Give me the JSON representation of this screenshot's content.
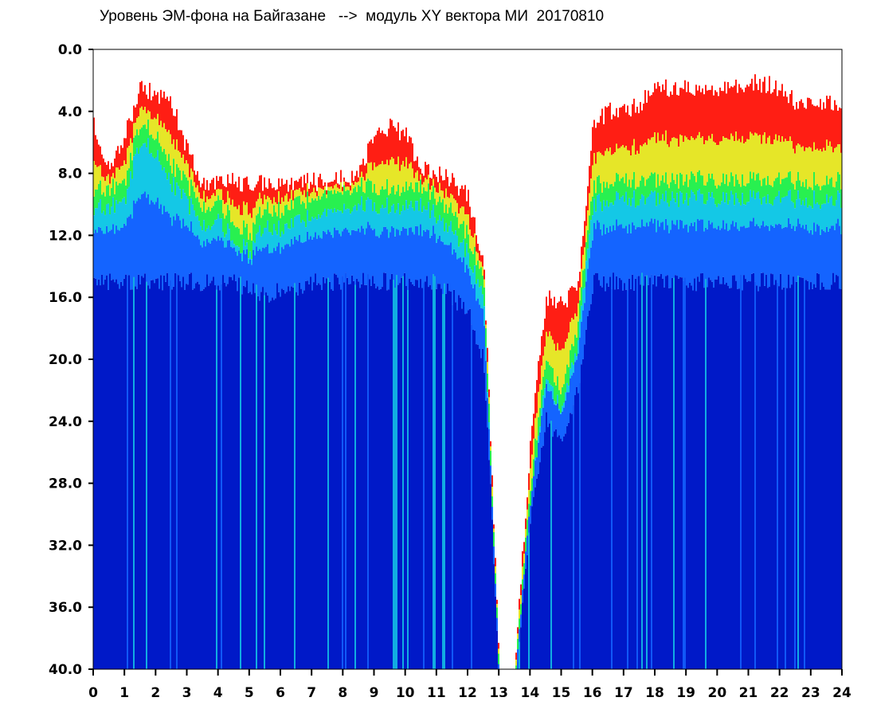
{
  "chart_data": {
    "type": "heatmap",
    "title": "Уровень ЭМ-фона на Байгазане   -->  модуль XY вектора МИ  20170810",
    "xlabel": "",
    "ylabel": "",
    "xlim": [
      0,
      24
    ],
    "ylim": [
      0,
      40
    ],
    "y_inverted": true,
    "grid": false,
    "x_ticks": [
      "0",
      "1",
      "2",
      "3",
      "4",
      "5",
      "6",
      "7",
      "8",
      "9",
      "10",
      "11",
      "12",
      "13",
      "14",
      "15",
      "16",
      "17",
      "18",
      "19",
      "20",
      "21",
      "22",
      "23",
      "24"
    ],
    "y_ticks": [
      "0.0",
      "4.0",
      "8.0",
      "12.0",
      "16.0",
      "20.0",
      "24.0",
      "28.0",
      "32.0",
      "36.0",
      "40.0"
    ],
    "colors": {
      "background_level": "#0019c8",
      "low": "#1464ff",
      "mid_low": "#14c8e6",
      "mid": "#28f050",
      "mid_high": "#e6e628",
      "high": "#ff1e14",
      "none": "#ffffff"
    },
    "hourly_profile": {
      "hours": [
        0,
        0.5,
        1,
        1.5,
        2,
        2.5,
        3,
        3.5,
        4,
        4.5,
        5,
        5.5,
        6,
        6.5,
        7,
        7.5,
        8,
        8.5,
        9,
        9.5,
        10,
        10.5,
        11,
        11.5,
        12,
        12.5,
        13,
        13.5,
        14,
        14.5,
        15,
        15.5,
        16,
        16.5,
        17,
        17.5,
        18,
        18.5,
        19,
        19.5,
        20,
        20.5,
        21,
        21.5,
        22,
        22.5,
        23,
        23.5,
        24
      ],
      "red_top": [
        5.0,
        7.5,
        5.5,
        2.6,
        2.8,
        3.4,
        6.5,
        8.8,
        8.6,
        8.5,
        8.8,
        8.6,
        8.7,
        8.6,
        8.5,
        8.7,
        8.3,
        8.2,
        5.5,
        5.0,
        5.5,
        7.8,
        8.0,
        8.5,
        9.5,
        14.0,
        40.0,
        40.0,
        25.0,
        16.0,
        16.5,
        15.5,
        5.0,
        4.0,
        4.0,
        3.5,
        2.5,
        2.5,
        2.5,
        2.5,
        2.5,
        2.5,
        2.2,
        2.2,
        2.5,
        3.5,
        3.5,
        3.5,
        3.8
      ],
      "green_top": [
        9.0,
        9.0,
        8.5,
        4.5,
        5.5,
        7.5,
        8.7,
        10.0,
        10.0,
        11.0,
        12.0,
        10.0,
        10.5,
        10.0,
        9.5,
        9.0,
        8.8,
        8.8,
        8.8,
        9.0,
        9.0,
        9.0,
        9.5,
        10.5,
        12.0,
        15.0,
        40.0,
        40.0,
        28.0,
        20.0,
        22.0,
        18.0,
        8.8,
        8.6,
        8.5,
        8.5,
        8.4,
        8.4,
        8.4,
        8.4,
        8.4,
        8.4,
        8.4,
        8.4,
        8.4,
        8.5,
        8.5,
        8.5,
        8.5
      ],
      "deep_top": [
        15.0,
        15.0,
        15.0,
        15.0,
        15.0,
        15.0,
        15.0,
        15.0,
        15.0,
        15.0,
        15.5,
        16.0,
        15.5,
        15.5,
        15.0,
        15.0,
        15.0,
        15.0,
        15.0,
        15.0,
        15.0,
        15.0,
        15.0,
        16.0,
        17.0,
        20.0,
        40.0,
        40.0,
        30.0,
        24.0,
        25.0,
        22.0,
        15.0,
        15.0,
        15.0,
        15.0,
        15.0,
        15.0,
        15.0,
        15.0,
        15.0,
        15.0,
        15.0,
        15.0,
        15.0,
        15.0,
        15.0,
        15.0,
        15.0
      ]
    }
  }
}
